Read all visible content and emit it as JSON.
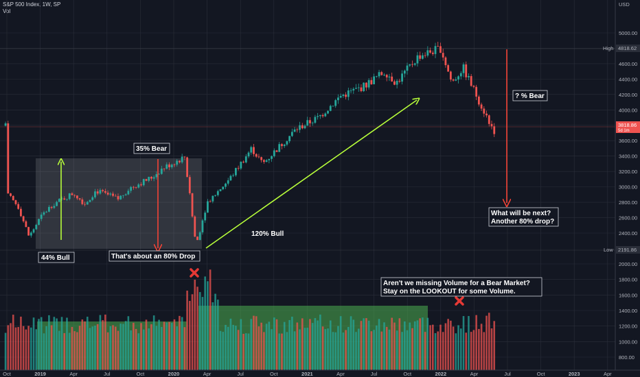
{
  "header": {
    "title": "S&P 500 Index, 1W, SP",
    "subtitle": "Vol"
  },
  "chart_data": {
    "type": "candlestick",
    "title": "S&P 500 Index, 1W, SP",
    "currency": "USD",
    "price_range": [
      2000,
      5000
    ],
    "price_ticks": [
      "5000.00",
      "4800.00",
      "4600.00",
      "4400.00",
      "4200.00",
      "4000.00",
      "3800.00",
      "3600.00",
      "3400.00",
      "3200.00",
      "3000.00",
      "2800.00",
      "2600.00",
      "2400.00"
    ],
    "volume_ticks": [
      "2000.00",
      "1800.00",
      "1600.00",
      "1400.00",
      "1200.00",
      "1000.00",
      "800.00"
    ],
    "x_ticks": [
      "Oct",
      "2019",
      "Apr",
      "Jul",
      "Oct",
      "2020",
      "Apr",
      "Jul",
      "Oct",
      "2021",
      "Apr",
      "Jul",
      "Oct",
      "2022",
      "Apr",
      "Jul",
      "Oct",
      "2023",
      "Apr"
    ],
    "markers": {
      "high": {
        "label": "High",
        "value": "4818.62",
        "price": 4818.62
      },
      "low": {
        "label": "Low",
        "value": "2191.86",
        "price": 2191.86
      },
      "last": {
        "value": "3818.86",
        "sub": "5d 1m",
        "price": 3818.86
      }
    },
    "price_path": [
      [
        "2018-10",
        2900
      ],
      [
        "2018-11",
        2750
      ],
      [
        "2018-12",
        2351
      ],
      [
        "2019-01",
        2600
      ],
      [
        "2019-02",
        2760
      ],
      [
        "2019-04",
        2920
      ],
      [
        "2019-05",
        2780
      ],
      [
        "2019-06",
        2950
      ],
      [
        "2019-08",
        2840
      ],
      [
        "2019-09",
        2980
      ],
      [
        "2019-11",
        3120
      ],
      [
        "2019-12",
        3240
      ],
      [
        "2020-02",
        3390
      ],
      [
        "2020-03",
        2237
      ],
      [
        "2020-04",
        2800
      ],
      [
        "2020-06",
        3100
      ],
      [
        "2020-08",
        3500
      ],
      [
        "2020-09",
        3300
      ],
      [
        "2020-11",
        3600
      ],
      [
        "2020-12",
        3750
      ],
      [
        "2021-02",
        3900
      ],
      [
        "2021-04",
        4180
      ],
      [
        "2021-06",
        4300
      ],
      [
        "2021-08",
        4500
      ],
      [
        "2021-09",
        4350
      ],
      [
        "2021-11",
        4700
      ],
      [
        "2022-01",
        4800
      ],
      [
        "2022-02",
        4350
      ],
      [
        "2022-03",
        4550
      ],
      [
        "2022-05",
        3950
      ],
      [
        "2022-06",
        3670
      ],
      [
        "2022-07",
        3818.86
      ]
    ],
    "annotations": [
      {
        "text": "44% Bull"
      },
      {
        "text": "35% Bear"
      },
      {
        "text": "That's about an 80% Drop"
      },
      {
        "text": "120% Bull"
      },
      {
        "text": "? % Bear"
      },
      {
        "text": "What will be next?"
      },
      {
        "text": "Another 80% drop?"
      },
      {
        "text": "Aren't we missing Volume for a Bear Market?"
      },
      {
        "text": "Stay on the LOOKOUT for some Volume."
      }
    ],
    "colors": {
      "up": "#26a69a",
      "down": "#ef5350",
      "arrow_green": "#b8ff3a",
      "arrow_red": "#f44336",
      "volume_zone": "#4caf50"
    },
    "grid": true
  }
}
